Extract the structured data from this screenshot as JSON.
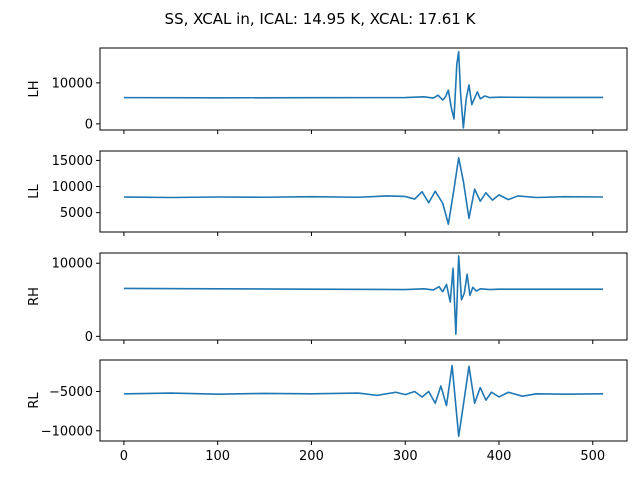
{
  "figure": {
    "title": "SS, XCAL in, ICAL: 14.95 K, XCAL: 17.61 K"
  },
  "colors": {
    "line": "#1f77b4",
    "axes": "#000000",
    "background": "#ffffff"
  },
  "chart_data": [
    {
      "type": "line",
      "ylabel": "LH",
      "xlim": [
        -25.5,
        536.5
      ],
      "ylim": [
        -1500,
        18500
      ],
      "yticks": [
        0,
        10000
      ],
      "yticklabels": [
        "0",
        "10000"
      ],
      "xticks": [
        0,
        100,
        200,
        300,
        400,
        500
      ],
      "xticklabels": [
        "",
        "",
        "",
        "",
        "",
        ""
      ],
      "series": [
        {
          "x": [
            0,
            100,
            200,
            300,
            320,
            330,
            335,
            340,
            343,
            346,
            349,
            352,
            355,
            357,
            359,
            362,
            365,
            368,
            371,
            374,
            377,
            380,
            385,
            390,
            400,
            450,
            511
          ],
          "y": [
            6400,
            6350,
            6380,
            6400,
            6600,
            6300,
            7000,
            5800,
            6600,
            8200,
            4100,
            1200,
            14500,
            17600,
            7500,
            -1000,
            6100,
            9500,
            4700,
            6300,
            7800,
            6100,
            6800,
            6400,
            6500,
            6450,
            6450
          ]
        }
      ]
    },
    {
      "type": "line",
      "ylabel": "LL",
      "xlim": [
        -25.5,
        536.5
      ],
      "ylim": [
        1300,
        16800
      ],
      "yticks": [
        5000,
        10000,
        15000
      ],
      "yticklabels": [
        "5000",
        "10000",
        "15000"
      ],
      "xticks": [
        0,
        100,
        200,
        300,
        400,
        500
      ],
      "xticklabels": [
        "",
        "",
        "",
        "",
        "",
        ""
      ],
      "series": [
        {
          "x": [
            0,
            50,
            100,
            150,
            200,
            250,
            280,
            300,
            310,
            318,
            325,
            332,
            340,
            346,
            352,
            357,
            362,
            368,
            374,
            380,
            386,
            393,
            400,
            410,
            420,
            440,
            470,
            511
          ],
          "y": [
            8000,
            7900,
            8000,
            7950,
            8050,
            7950,
            8200,
            8100,
            7600,
            9000,
            6900,
            9100,
            6800,
            2800,
            9500,
            15500,
            11000,
            3900,
            9500,
            7200,
            8800,
            7400,
            8400,
            7500,
            8200,
            7900,
            8050,
            8000
          ]
        }
      ]
    },
    {
      "type": "line",
      "ylabel": "RH",
      "xlim": [
        -25.5,
        536.5
      ],
      "ylim": [
        -500,
        11400
      ],
      "yticks": [
        0,
        10000
      ],
      "yticklabels": [
        "0",
        "10000"
      ],
      "xticks": [
        0,
        100,
        200,
        300,
        400,
        500
      ],
      "xticklabels": [
        "",
        "",
        "",
        "",
        "",
        ""
      ],
      "series": [
        {
          "x": [
            0,
            100,
            200,
            300,
            320,
            330,
            336,
            340,
            344,
            348,
            351,
            354,
            357,
            360,
            363,
            366,
            369,
            372,
            376,
            380,
            390,
            400,
            450,
            511
          ],
          "y": [
            6550,
            6500,
            6450,
            6400,
            6500,
            6350,
            6800,
            6100,
            7100,
            4700,
            9300,
            300,
            11000,
            5000,
            5900,
            8500,
            5600,
            6700,
            6200,
            6500,
            6400,
            6450,
            6450,
            6450
          ]
        }
      ]
    },
    {
      "type": "line",
      "ylabel": "RL",
      "xlim": [
        -25.5,
        536.5
      ],
      "ylim": [
        -11300,
        -1000
      ],
      "yticks": [
        -10000,
        -5000
      ],
      "yticklabels": [
        "−10000",
        "−5000"
      ],
      "xticks": [
        0,
        100,
        200,
        300,
        400,
        500
      ],
      "xticklabels": [
        "0",
        "100",
        "200",
        "300",
        "400",
        "500"
      ],
      "series": [
        {
          "x": [
            0,
            50,
            100,
            150,
            200,
            250,
            270,
            290,
            300,
            310,
            318,
            325,
            332,
            338,
            344,
            350,
            357,
            362,
            368,
            374,
            380,
            386,
            392,
            400,
            410,
            425,
            440,
            470,
            511
          ],
          "y": [
            -5300,
            -5200,
            -5350,
            -5250,
            -5300,
            -5200,
            -5500,
            -5100,
            -5400,
            -5000,
            -5700,
            -5000,
            -6500,
            -4300,
            -6800,
            -1700,
            -10700,
            -6700,
            -1800,
            -6500,
            -4500,
            -6100,
            -5100,
            -5700,
            -5100,
            -5600,
            -5300,
            -5350,
            -5300
          ]
        }
      ]
    }
  ]
}
